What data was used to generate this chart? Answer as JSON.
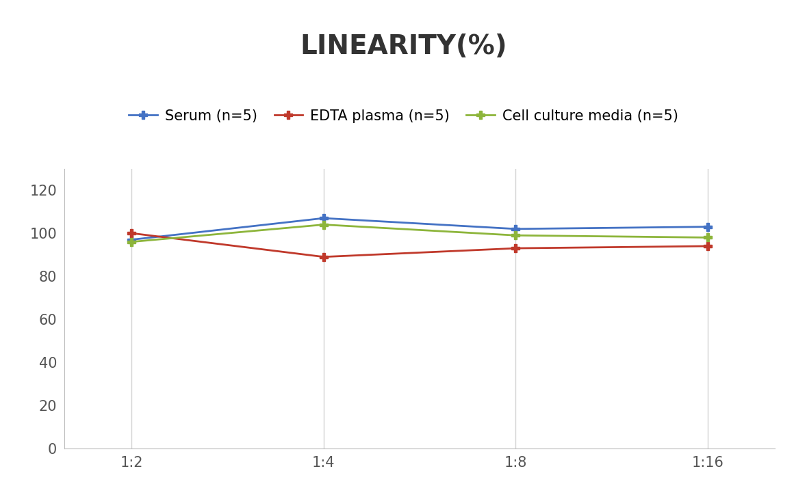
{
  "title": "LINEARITY(%)",
  "x_labels": [
    "1:2",
    "1:4",
    "1:8",
    "1:16"
  ],
  "x_positions": [
    0,
    1,
    2,
    3
  ],
  "series": [
    {
      "name": "Serum (n=5)",
      "values": [
        97,
        107,
        102,
        103
      ],
      "color": "#4472C4",
      "marker": "P",
      "linewidth": 2,
      "markersize": 9
    },
    {
      "name": "EDTA plasma (n=5)",
      "values": [
        100,
        89,
        93,
        94
      ],
      "color": "#C0392B",
      "marker": "P",
      "linewidth": 2,
      "markersize": 9
    },
    {
      "name": "Cell culture media (n=5)",
      "values": [
        96,
        104,
        99,
        98
      ],
      "color": "#8DB53B",
      "marker": "P",
      "linewidth": 2,
      "markersize": 9
    }
  ],
  "ylim": [
    0,
    130
  ],
  "yticks": [
    0,
    20,
    40,
    60,
    80,
    100,
    120
  ],
  "background_color": "#FFFFFF",
  "grid_color": "#D3D3D3",
  "title_fontsize": 28,
  "tick_fontsize": 15,
  "legend_fontsize": 15
}
